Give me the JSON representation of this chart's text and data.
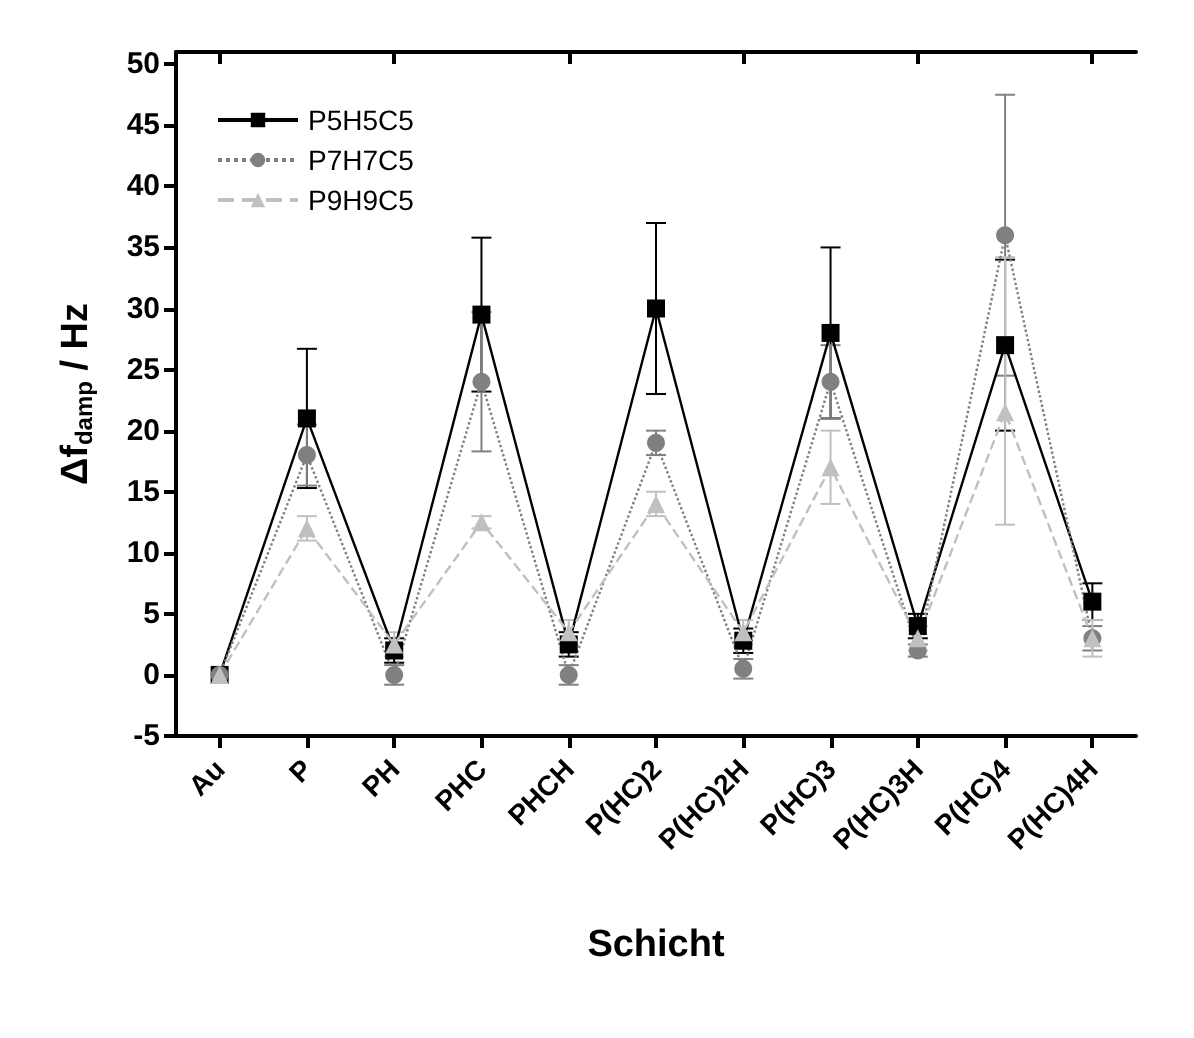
{
  "chart_data": {
    "type": "line",
    "xlabel": "Schicht",
    "ylabel": "Δf$_{damp}$ / Hz",
    "categories": [
      "Au",
      "P",
      "PH",
      "PHC",
      "PHCH",
      "P(HC)2",
      "P(HC)2H",
      "P(HC)3",
      "P(HC)3H",
      "P(HC)4",
      "P(HC)4H"
    ],
    "ylim": [
      -5,
      51
    ],
    "yticks": [
      -5,
      0,
      5,
      10,
      15,
      20,
      25,
      30,
      35,
      40,
      45,
      50
    ],
    "legend": "top left",
    "grid": false,
    "series": [
      {
        "name": "P5H5C5",
        "color": "#000000",
        "marker": "square",
        "line_style": "solid",
        "values": [
          0,
          21,
          2,
          29.5,
          2.5,
          30,
          2.8,
          28,
          4,
          27,
          6
        ],
        "errors": [
          null,
          5.7,
          1,
          6.3,
          1,
          7,
          1,
          7,
          1,
          7,
          1.5
        ]
      },
      {
        "name": "P7H7C5",
        "color": "#808080",
        "marker": "circle",
        "line_style": "dotted",
        "values": [
          0,
          18,
          0,
          24,
          0,
          19,
          0.5,
          24,
          2,
          36,
          3
        ],
        "errors": [
          null,
          2.5,
          0.8,
          5.7,
          0.8,
          1,
          0.8,
          3,
          0.5,
          11.5,
          1
        ]
      },
      {
        "name": "P9H9C5",
        "color": "#c0c0c0",
        "marker": "triangle",
        "line_style": "dashed",
        "values": [
          0,
          12,
          2.5,
          12.5,
          3.5,
          14,
          3.5,
          17,
          3,
          21.5,
          3
        ],
        "errors": [
          null,
          1,
          1,
          0.5,
          1,
          1,
          1,
          3,
          1,
          [
            12.3,
            34.2
          ],
          1.5
        ]
      }
    ]
  }
}
